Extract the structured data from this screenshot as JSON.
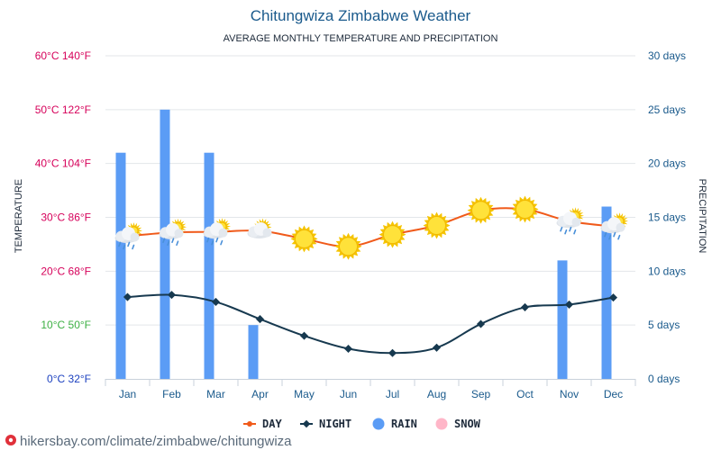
{
  "title": "Chitungwiza Zimbabwe Weather",
  "subtitle": "AVERAGE MONTHLY TEMPERATURE AND PRECIPITATION",
  "watermark": "hikersbay.com/climate/zimbabwe/chitungwiza",
  "chart_data": {
    "type": "bar+line",
    "categories": [
      "Jan",
      "Feb",
      "Mar",
      "Apr",
      "May",
      "Jun",
      "Jul",
      "Aug",
      "Sep",
      "Oct",
      "Nov",
      "Dec"
    ],
    "left_axis": {
      "title": "TEMPERATURE",
      "range": [
        0,
        60
      ],
      "ticks": [
        {
          "value": 0,
          "label": "0°C 32°F",
          "color": "#1a3fbf"
        },
        {
          "value": 10,
          "label": "10°C 50°F",
          "color": "#3cb043"
        },
        {
          "value": 20,
          "label": "20°C 68°F",
          "color": "#d6005a"
        },
        {
          "value": 30,
          "label": "30°C 86°F",
          "color": "#d6005a"
        },
        {
          "value": 40,
          "label": "40°C 104°F",
          "color": "#d6005a"
        },
        {
          "value": 50,
          "label": "50°C 122°F",
          "color": "#d6005a"
        },
        {
          "value": 60,
          "label": "60°C 140°F",
          "color": "#d6005a"
        }
      ]
    },
    "right_axis": {
      "title": "PRECIPITATION",
      "range": [
        0,
        30
      ],
      "ticks": [
        {
          "value": 0,
          "label": "0 days"
        },
        {
          "value": 5,
          "label": "5 days"
        },
        {
          "value": 10,
          "label": "10 days"
        },
        {
          "value": 15,
          "label": "15 days"
        },
        {
          "value": 20,
          "label": "20 days"
        },
        {
          "value": 25,
          "label": "25 days"
        },
        {
          "value": 30,
          "label": "30 days"
        }
      ]
    },
    "series": [
      {
        "name": "DAY",
        "kind": "line",
        "axis": "left",
        "color": "#f05a1a",
        "values": [
          26.5,
          27.2,
          27.3,
          27.5,
          26.0,
          24.6,
          26.8,
          28.5,
          31.3,
          31.5,
          29.3,
          28.3
        ]
      },
      {
        "name": "NIGHT",
        "kind": "line",
        "axis": "left",
        "color": "#17394f",
        "values": [
          15.2,
          15.6,
          14.3,
          11.1,
          8.0,
          5.6,
          4.8,
          5.8,
          10.2,
          13.3,
          13.8,
          15.1
        ]
      },
      {
        "name": "RAIN",
        "kind": "bar",
        "axis": "right",
        "color": "#5b9cf5",
        "values": [
          21,
          25,
          21,
          5,
          0,
          0,
          0,
          0,
          0,
          0,
          11,
          16
        ]
      },
      {
        "name": "SNOW",
        "kind": "bar",
        "axis": "right",
        "color": "#ffb6c8",
        "values": [
          0,
          0,
          0,
          0,
          0,
          0,
          0,
          0,
          0,
          0,
          0,
          0
        ]
      }
    ],
    "weather_icons": [
      "rain-sun",
      "rain-sun",
      "rain-sun",
      "cloud-sun",
      "sun",
      "sun",
      "sun",
      "sun",
      "sun",
      "sun",
      "rain-sun",
      "rain-sun"
    ],
    "grid": true,
    "legend_position": "bottom-center"
  }
}
